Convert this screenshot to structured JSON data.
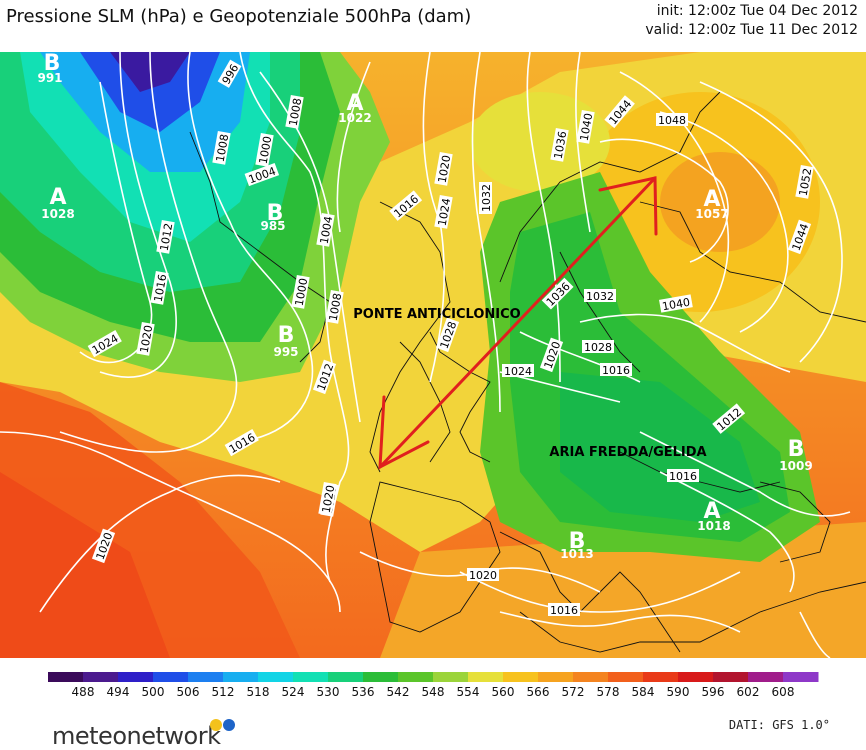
{
  "header": {
    "title": "Pressione SLM (hPa) e Geopotenziale 500hPa (dam)",
    "init": "init: 12:00z Tue 04 Dec 2012",
    "valid": "valid: 12:00z Tue 11 Dec 2012"
  },
  "pressure_centers": [
    {
      "letter": "B",
      "value": "991"
    },
    {
      "letter": "A",
      "value": "1022"
    },
    {
      "letter": "A",
      "value": "1028"
    },
    {
      "letter": "B",
      "value": "985"
    },
    {
      "letter": "B",
      "value": "995"
    },
    {
      "letter": "A",
      "value": "1057"
    },
    {
      "letter": "B",
      "value": "1009"
    },
    {
      "letter": "A",
      "value": "1018"
    },
    {
      "letter": "B",
      "value": "1013"
    }
  ],
  "isobar_labels": [
    "996",
    "1008",
    "1000",
    "1004",
    "1008",
    "1012",
    "1016",
    "1020",
    "1024",
    "1004",
    "1000",
    "1008",
    "1012",
    "1016",
    "1020",
    "1016",
    "1020",
    "1024",
    "1028",
    "1032",
    "1036",
    "1040",
    "1044",
    "1048",
    "1052",
    "1044",
    "1040",
    "1036",
    "1032",
    "1028",
    "1024",
    "1020",
    "1016",
    "1012",
    "1016",
    "1020",
    "1020",
    "1020",
    "1016"
  ],
  "annotations": {
    "bridge": "PONTE ANTICICLONICO",
    "cold": "ARIA FREDDA/GELIDA"
  },
  "colorbar": {
    "ticks": [
      "488",
      "494",
      "500",
      "506",
      "512",
      "518",
      "524",
      "530",
      "536",
      "542",
      "548",
      "554",
      "560",
      "566",
      "572",
      "578",
      "584",
      "590",
      "596",
      "602",
      "608"
    ],
    "colors": [
      "#3a0a5a",
      "#4b1a8e",
      "#2e1fc8",
      "#1f4ee8",
      "#1d7ff0",
      "#17aef0",
      "#12d4e6",
      "#12e0b4",
      "#18d07a",
      "#2bbd38",
      "#5bc52a",
      "#9bd43a",
      "#e6e03a",
      "#f7c21e",
      "#f6a320",
      "#f48420",
      "#f2601c",
      "#e93a18",
      "#d81a1a",
      "#b2142e",
      "#a01c8a",
      "#8e38c8"
    ]
  },
  "footer": {
    "logo": "meteonetwork",
    "credit": "DATI:  GFS  1.0°"
  }
}
